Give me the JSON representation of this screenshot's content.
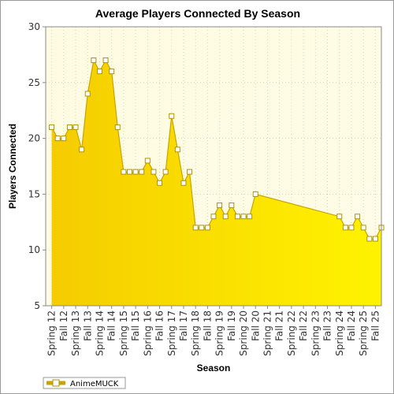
{
  "chart_data": {
    "type": "area",
    "title": "Average Players Connected By Season",
    "xlabel": "Season",
    "ylabel": "Players Connected",
    "ylim": [
      5,
      30
    ],
    "yticks": [
      5,
      10,
      15,
      20,
      25,
      30
    ],
    "grid": true,
    "legend_position": "bottom-left",
    "x_tick_labels": [
      "Spring 12",
      "Fall 12",
      "Spring 13",
      "Fall 13",
      "Spring 14",
      "Fall 14",
      "Spring 15",
      "Fall 15",
      "Spring 16",
      "Fall 16",
      "Spring 17",
      "Fall 17",
      "Spring 18",
      "Fall 18",
      "Spring 19",
      "Fall 19",
      "Spring 20",
      "Fall 20",
      "Spring 21",
      "Fall 21",
      "Spring 22",
      "Fall 22",
      "Spring 23",
      "Fall 23",
      "Spring 24",
      "Fall 24",
      "Spring 25",
      "Fall 25"
    ],
    "series": [
      {
        "name": "AnimeMUCK",
        "color": "#ffd800",
        "line_color": "#c8a400",
        "points": [
          {
            "x": 0,
            "y": 21
          },
          {
            "x": 0.5,
            "y": 20
          },
          {
            "x": 1,
            "y": 20
          },
          {
            "x": 1.5,
            "y": 21
          },
          {
            "x": 2,
            "y": 21
          },
          {
            "x": 2.5,
            "y": 19
          },
          {
            "x": 3,
            "y": 24
          },
          {
            "x": 3.5,
            "y": 27
          },
          {
            "x": 4,
            "y": 26
          },
          {
            "x": 4.5,
            "y": 27
          },
          {
            "x": 5,
            "y": 26
          },
          {
            "x": 5.5,
            "y": 21
          },
          {
            "x": 6,
            "y": 17
          },
          {
            "x": 6.5,
            "y": 17
          },
          {
            "x": 7,
            "y": 17
          },
          {
            "x": 7.5,
            "y": 17
          },
          {
            "x": 8,
            "y": 18
          },
          {
            "x": 8.5,
            "y": 17
          },
          {
            "x": 9,
            "y": 16
          },
          {
            "x": 9.5,
            "y": 17
          },
          {
            "x": 10,
            "y": 22
          },
          {
            "x": 10.5,
            "y": 19
          },
          {
            "x": 11,
            "y": 16
          },
          {
            "x": 11.5,
            "y": 17
          },
          {
            "x": 12,
            "y": 12
          },
          {
            "x": 12.5,
            "y": 12
          },
          {
            "x": 13,
            "y": 12
          },
          {
            "x": 13.5,
            "y": 13
          },
          {
            "x": 14,
            "y": 14
          },
          {
            "x": 14.5,
            "y": 13
          },
          {
            "x": 15,
            "y": 14
          },
          {
            "x": 15.5,
            "y": 13
          },
          {
            "x": 16,
            "y": 13
          },
          {
            "x": 16.5,
            "y": 13
          },
          {
            "x": 17,
            "y": 15
          },
          {
            "x": 24,
            "y": 13
          },
          {
            "x": 24.5,
            "y": 12
          },
          {
            "x": 25,
            "y": 12
          },
          {
            "x": 25.5,
            "y": 13
          },
          {
            "x": 26,
            "y": 12
          },
          {
            "x": 26.5,
            "y": 11
          },
          {
            "x": 27,
            "y": 11
          },
          {
            "x": 27.5,
            "y": 12
          }
        ]
      }
    ]
  }
}
